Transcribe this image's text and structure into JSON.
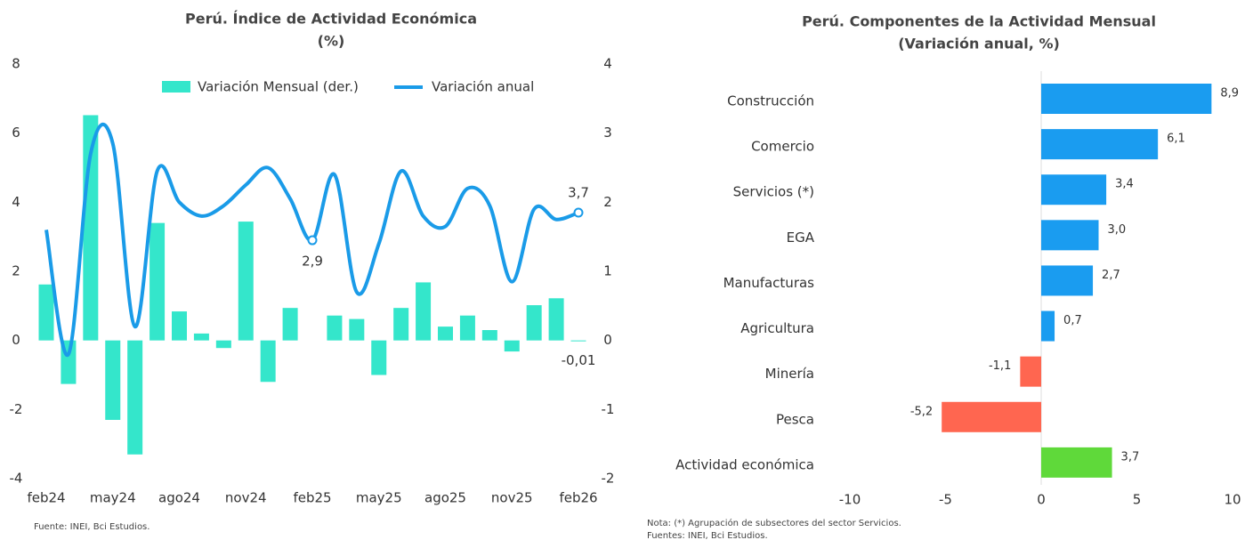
{
  "chart_data": [
    {
      "type": "bar-line",
      "title": "Perú. Índice de Actividad Económica",
      "subtitle": "(%)",
      "categories": [
        "feb24",
        null,
        null,
        "may24",
        null,
        null,
        "ago24",
        null,
        null,
        "nov24",
        null,
        null,
        "feb25",
        null,
        null,
        "may25",
        null,
        null,
        "ago25",
        null,
        null,
        "nov25",
        null,
        null,
        "feb26"
      ],
      "series": [
        {
          "name": "Variación Mensual (der.)",
          "type": "bar",
          "axis": "y2",
          "color": "#34e6cb",
          "values": [
            0.81,
            -0.63,
            3.26,
            -1.15,
            -1.65,
            1.7,
            0.42,
            0.1,
            -0.11,
            1.72,
            -0.6,
            0.47,
            null,
            0.36,
            0.31,
            -0.5,
            0.47,
            0.84,
            0.2,
            0.36,
            0.15,
            -0.16,
            0.51,
            0.61,
            -0.01
          ],
          "value_labels": [
            null,
            null,
            null,
            null,
            null,
            null,
            null,
            null,
            null,
            null,
            null,
            null,
            null,
            null,
            null,
            null,
            null,
            null,
            null,
            null,
            null,
            null,
            null,
            null,
            "-0,01"
          ]
        },
        {
          "name": "Variación anual",
          "type": "line",
          "color": "#1a9be8",
          "values": [
            3.2,
            -0.4,
            5.4,
            5.7,
            0.4,
            4.9,
            4.0,
            3.6,
            3.9,
            4.5,
            5.0,
            4.1,
            2.9,
            4.8,
            1.4,
            2.8,
            4.9,
            3.6,
            3.3,
            4.4,
            3.9,
            1.7,
            3.8,
            3.5,
            3.7
          ],
          "value_labels": [
            null,
            null,
            null,
            null,
            null,
            null,
            null,
            null,
            null,
            null,
            null,
            null,
            "2,9",
            null,
            null,
            null,
            null,
            null,
            null,
            null,
            null,
            null,
            null,
            null,
            "3,7"
          ]
        }
      ],
      "ylim": [
        -4,
        8
      ],
      "yticks": [
        -4,
        -2,
        0,
        2,
        4,
        6,
        8
      ],
      "y2lim": [
        -2,
        4
      ],
      "y2ticks": [
        -2,
        -1,
        0,
        1,
        2,
        3,
        4
      ],
      "legend": "top",
      "source": "Fuente: INEI, Bci Estudios."
    },
    {
      "type": "hbar",
      "title": "Perú. Componentes de la Actividad Mensual",
      "subtitle": "(Variación anual, %)",
      "categories": [
        "Construcción",
        "Comercio",
        "Servicios (*)",
        "EGA",
        "Manufacturas",
        "Agricultura",
        "Minería",
        "Pesca",
        "Actividad económica"
      ],
      "values": [
        8.9,
        6.1,
        3.4,
        3.0,
        2.7,
        0.7,
        -1.1,
        -5.2,
        3.7
      ],
      "value_labels": [
        "8,9",
        "6,1",
        "3,4",
        "3,0",
        "2,7",
        "0,7",
        "-1,1",
        "-5,2",
        "3,7"
      ],
      "colors": [
        "#1a9cf0",
        "#1a9cf0",
        "#1a9cf0",
        "#1a9cf0",
        "#1a9cf0",
        "#1a9cf0",
        "#ff6650",
        "#ff6650",
        "#5fd93a"
      ],
      "xlim": [
        -10,
        10
      ],
      "xticks": [
        -10,
        -5,
        0,
        5,
        10
      ],
      "notes": [
        "Nota: (*) Agrupación de subsectores del sector Servicios.",
        "Fuentes: INEI, Bci Estudios."
      ]
    }
  ]
}
